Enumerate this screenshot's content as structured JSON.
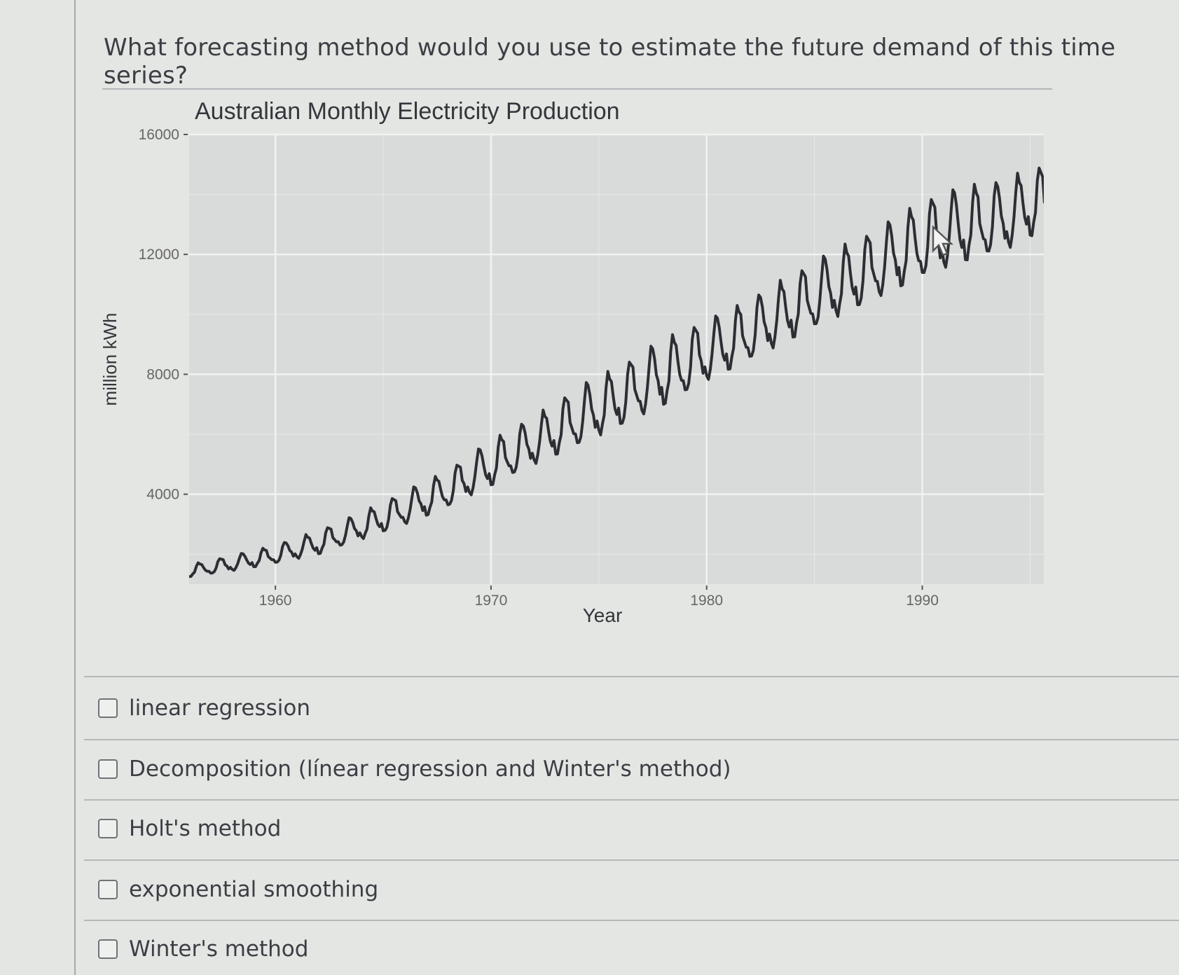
{
  "question": {
    "text": "What forecasting method would you use to estimate the future demand of this time series?"
  },
  "options": [
    {
      "label": "linear regression",
      "checked": false
    },
    {
      "label": "Decomposition (línear regression and Winter's method)",
      "checked": false
    },
    {
      "label": "Holt's method",
      "checked": false
    },
    {
      "label": "exponential smoothing",
      "checked": false
    },
    {
      "label": "Winter's method",
      "checked": false
    }
  ],
  "chart_data": {
    "type": "line",
    "title": "Australian Monthly Electricity Production",
    "xlabel": "Year",
    "ylabel": "million kWh",
    "xlim": [
      1956,
      1995.7
    ],
    "ylim": [
      1000,
      16000
    ],
    "x_ticks": [
      "1960",
      "1970",
      "1980",
      "1990"
    ],
    "y_ticks": [
      "4000",
      "8000",
      "12000",
      "16000"
    ],
    "grid": true,
    "legend": null,
    "series": [
      {
        "name": "electricity",
        "color": "#2c2e33",
        "x_start": 1956,
        "frequency": 12,
        "annual_summary": [
          {
            "year": 1956,
            "min": 1250,
            "max": 1650
          },
          {
            "year": 1958,
            "min": 1450,
            "max": 1950
          },
          {
            "year": 1960,
            "min": 1700,
            "max": 2300
          },
          {
            "year": 1962,
            "min": 2000,
            "max": 2800
          },
          {
            "year": 1964,
            "min": 2500,
            "max": 3400
          },
          {
            "year": 1966,
            "min": 3000,
            "max": 4100
          },
          {
            "year": 1968,
            "min": 3600,
            "max": 4800
          },
          {
            "year": 1970,
            "min": 4300,
            "max": 5800
          },
          {
            "year": 1972,
            "min": 5000,
            "max": 6600
          },
          {
            "year": 1974,
            "min": 5600,
            "max": 7600
          },
          {
            "year": 1976,
            "min": 6300,
            "max": 8300
          },
          {
            "year": 1978,
            "min": 7000,
            "max": 9200
          },
          {
            "year": 1980,
            "min": 7800,
            "max": 9800
          },
          {
            "year": 1982,
            "min": 8500,
            "max": 10500
          },
          {
            "year": 1984,
            "min": 9200,
            "max": 11400
          },
          {
            "year": 1986,
            "min": 9900,
            "max": 12200
          },
          {
            "year": 1988,
            "min": 10600,
            "max": 12900
          },
          {
            "year": 1990,
            "min": 11300,
            "max": 13800
          },
          {
            "year": 1992,
            "min": 11800,
            "max": 14300
          },
          {
            "year": 1994,
            "min": 12200,
            "max": 14500
          },
          {
            "year": 1995,
            "min": 12600,
            "max": 15000
          }
        ]
      }
    ]
  }
}
